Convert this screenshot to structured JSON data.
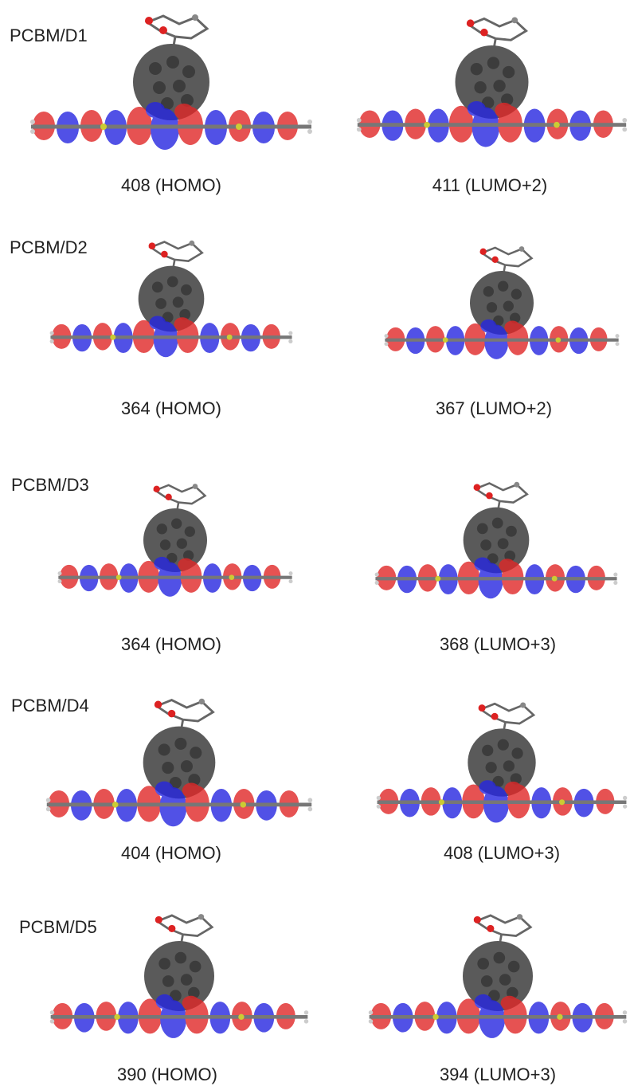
{
  "panels": [
    {
      "label": "PCBM/D1",
      "homo": "408 (HOMO)",
      "lumo": "411 (LUMO+2)"
    },
    {
      "label": "PCBM/D2",
      "homo": "364 (HOMO)",
      "lumo": "367 (LUMO+2)"
    },
    {
      "label": "PCBM/D3",
      "homo": "364 (HOMO)",
      "lumo": "368 (LUMO+3)"
    },
    {
      "label": "PCBM/D4",
      "homo": "404 (HOMO)",
      "lumo": "408 (LUMO+3)"
    },
    {
      "label": "PCBM/D5",
      "homo": "390 (HOMO)",
      "lumo": "394 (LUMO+3)"
    }
  ]
}
